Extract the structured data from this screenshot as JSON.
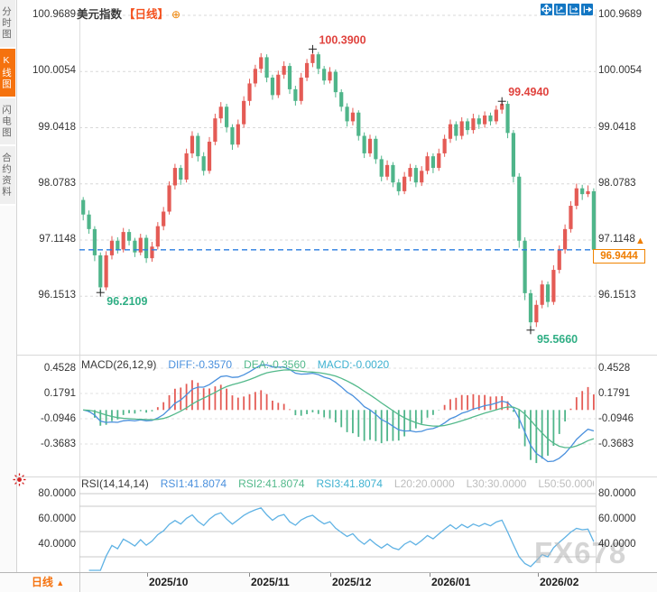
{
  "header": {
    "title": "美元指数",
    "period_tag": "【日线】",
    "plus_icon": "⊕"
  },
  "sidebar": {
    "tabs": [
      {
        "label": "分时图",
        "active": false
      },
      {
        "label": "K线图",
        "active": true
      },
      {
        "label": "闪电图",
        "active": false
      },
      {
        "label": "合约资料",
        "active": false
      }
    ]
  },
  "toolbar": {
    "icons": [
      "crosshair-move",
      "zoom-fit-horizontal",
      "zoom-fit-vertical",
      "jump-to-latest"
    ]
  },
  "colors": {
    "up_candle": "#e45b55",
    "down_candle": "#4fb58a",
    "accent_orange": "#f5720e",
    "period_tag_red": "#f4511e",
    "current_price_line": "#2a7de1",
    "annotation_high": "#e0433e",
    "annotation_low": "#2fae84",
    "diff_blue": "#4a90dd",
    "dea_green": "#53b98b",
    "macd_cyan": "#3eb1d0",
    "rsi_line": "#5fb2e4",
    "toolbar_blue": "#1276c3",
    "live_red": "#d42222",
    "grid": "#d8d8d8",
    "level_gray": "#bdbdbd"
  },
  "chart_data": [
    {
      "type": "candlestick",
      "title": "美元指数 日线 (US Dollar Index, daily)",
      "y_ticks": [
        "100.9689",
        "100.0054",
        "99.0418",
        "98.0783",
        "97.1148",
        "96.1513"
      ],
      "y_tick_values": [
        100.9689,
        100.0054,
        99.0418,
        98.0783,
        97.1148,
        96.1513
      ],
      "x_ticks": [
        "2025/10",
        "2025/11",
        "2025/12",
        "2026/01",
        "2026/02"
      ],
      "current_price": {
        "value": "96.9444",
        "numeric": 96.9444,
        "direction": "up",
        "arrow": "▲"
      },
      "annotations": [
        {
          "text": "100.3900",
          "kind": "high",
          "index": 40,
          "price": 100.39
        },
        {
          "text": "99.4940",
          "kind": "high",
          "index": 73,
          "price": 99.494
        },
        {
          "text": "96.2109",
          "kind": "low",
          "index": 3,
          "price": 96.2109
        },
        {
          "text": "95.5660",
          "kind": "low",
          "index": 78,
          "price": 95.566
        }
      ],
      "candles": [
        [
          97.8,
          97.85,
          97.45,
          97.55
        ],
        [
          97.55,
          97.62,
          97.22,
          97.3
        ],
        [
          97.3,
          97.35,
          96.75,
          96.85
        ],
        [
          96.85,
          96.9,
          96.2109,
          96.3
        ],
        [
          96.3,
          96.92,
          96.25,
          96.85
        ],
        [
          96.85,
          97.18,
          96.78,
          97.1
        ],
        [
          97.1,
          97.16,
          96.88,
          96.95
        ],
        [
          96.95,
          97.32,
          96.9,
          97.25
        ],
        [
          97.25,
          97.3,
          97.02,
          97.1
        ],
        [
          97.1,
          97.15,
          96.82,
          96.9
        ],
        [
          96.9,
          97.22,
          96.85,
          97.15
        ],
        [
          97.15,
          97.2,
          96.72,
          96.8
        ],
        [
          96.8,
          97.08,
          96.74,
          97.0
        ],
        [
          97.0,
          97.42,
          96.95,
          97.35
        ],
        [
          97.35,
          97.68,
          97.28,
          97.6
        ],
        [
          97.6,
          98.12,
          97.55,
          98.05
        ],
        [
          98.05,
          98.42,
          97.98,
          98.35
        ],
        [
          98.35,
          98.4,
          98.06,
          98.15
        ],
        [
          98.15,
          98.68,
          98.1,
          98.6
        ],
        [
          98.6,
          98.98,
          98.52,
          98.9
        ],
        [
          98.9,
          98.95,
          98.46,
          98.55
        ],
        [
          98.55,
          98.62,
          98.22,
          98.3
        ],
        [
          98.3,
          98.88,
          98.25,
          98.8
        ],
        [
          98.8,
          99.28,
          98.74,
          99.2
        ],
        [
          99.2,
          99.48,
          99.12,
          99.4
        ],
        [
          99.4,
          99.45,
          98.96,
          99.05
        ],
        [
          99.05,
          99.1,
          98.66,
          98.75
        ],
        [
          98.75,
          99.18,
          98.7,
          99.1
        ],
        [
          99.1,
          99.58,
          99.04,
          99.5
        ],
        [
          99.5,
          99.88,
          99.42,
          99.8
        ],
        [
          99.8,
          100.12,
          99.74,
          100.05
        ],
        [
          100.05,
          100.32,
          99.98,
          100.25
        ],
        [
          100.25,
          100.3,
          99.82,
          99.9
        ],
        [
          99.9,
          99.95,
          99.52,
          99.6
        ],
        [
          99.6,
          100.02,
          99.55,
          99.95
        ],
        [
          99.95,
          100.18,
          99.88,
          100.1
        ],
        [
          100.1,
          100.15,
          99.62,
          99.7
        ],
        [
          99.7,
          99.76,
          99.42,
          99.5
        ],
        [
          99.5,
          99.98,
          99.44,
          99.9
        ],
        [
          99.9,
          100.22,
          99.84,
          100.15
        ],
        [
          100.15,
          100.39,
          100.08,
          100.3
        ],
        [
          100.3,
          100.34,
          99.96,
          100.05
        ],
        [
          100.05,
          100.1,
          99.78,
          99.85
        ],
        [
          99.85,
          100.08,
          99.8,
          100.0
        ],
        [
          100.0,
          100.04,
          99.56,
          99.65
        ],
        [
          99.65,
          99.7,
          99.32,
          99.4
        ],
        [
          99.4,
          99.46,
          99.06,
          99.15
        ],
        [
          99.15,
          99.38,
          99.08,
          99.3
        ],
        [
          99.3,
          99.34,
          98.82,
          98.9
        ],
        [
          98.9,
          98.96,
          98.52,
          98.6
        ],
        [
          98.6,
          98.92,
          98.54,
          98.85
        ],
        [
          98.85,
          98.9,
          98.42,
          98.5
        ],
        [
          98.5,
          98.56,
          98.12,
          98.2
        ],
        [
          98.2,
          98.48,
          98.14,
          98.4
        ],
        [
          98.4,
          98.45,
          98.02,
          98.1
        ],
        [
          98.1,
          98.16,
          97.88,
          97.95
        ],
        [
          97.95,
          98.28,
          97.9,
          98.2
        ],
        [
          98.2,
          98.42,
          98.12,
          98.35
        ],
        [
          98.35,
          98.4,
          98.02,
          98.1
        ],
        [
          98.1,
          98.38,
          98.04,
          98.3
        ],
        [
          98.3,
          98.62,
          98.24,
          98.55
        ],
        [
          98.55,
          98.6,
          98.26,
          98.35
        ],
        [
          98.35,
          98.68,
          98.3,
          98.6
        ],
        [
          98.6,
          98.92,
          98.54,
          98.85
        ],
        [
          98.85,
          99.18,
          98.78,
          99.1
        ],
        [
          99.1,
          99.15,
          98.82,
          98.9
        ],
        [
          98.9,
          99.22,
          98.84,
          99.15
        ],
        [
          99.15,
          99.2,
          98.92,
          99.0
        ],
        [
          99.0,
          99.28,
          98.94,
          99.2
        ],
        [
          99.2,
          99.26,
          99.02,
          99.1
        ],
        [
          99.1,
          99.32,
          99.04,
          99.25
        ],
        [
          99.25,
          99.3,
          99.08,
          99.15
        ],
        [
          99.15,
          99.42,
          99.1,
          99.35
        ],
        [
          99.35,
          99.494,
          99.28,
          99.45
        ],
        [
          99.45,
          99.5,
          98.86,
          98.95
        ],
        [
          98.95,
          99.0,
          98.1,
          98.2
        ],
        [
          98.2,
          98.26,
          96.98,
          97.1
        ],
        [
          97.1,
          97.16,
          96.08,
          96.2
        ],
        [
          96.2,
          96.26,
          95.566,
          95.7
        ],
        [
          95.7,
          96.08,
          95.62,
          96.0
        ],
        [
          96.0,
          96.42,
          95.94,
          96.35
        ],
        [
          96.35,
          96.4,
          95.96,
          96.05
        ],
        [
          96.05,
          96.68,
          96.0,
          96.6
        ],
        [
          96.6,
          97.02,
          96.54,
          96.95
        ],
        [
          96.95,
          97.38,
          96.88,
          97.3
        ],
        [
          97.3,
          97.78,
          97.24,
          97.7
        ],
        [
          97.7,
          98.08,
          97.64,
          98.0
        ],
        [
          98.0,
          98.06,
          97.8,
          97.9
        ],
        [
          97.9,
          98.05,
          97.85,
          97.95
        ],
        [
          97.95,
          98.0,
          96.86,
          96.9444
        ]
      ]
    },
    {
      "type": "macd",
      "label": "MACD(26,12,9)",
      "params": {
        "slow": 26,
        "fast": 12,
        "signal": 9
      },
      "values_text": [
        {
          "label": "DIFF:-0.3570",
          "color": "#4a90dd"
        },
        {
          "label": "DEA:-0.3560",
          "color": "#53b98b"
        },
        {
          "label": "MACD:-0.0020",
          "color": "#3eb1d0"
        }
      ],
      "y_ticks": [
        "0.4528",
        "0.1791",
        "-0.0946",
        "-0.3683"
      ]
    },
    {
      "type": "rsi",
      "label": "RSI(14,14,14)",
      "period": 14,
      "values_text": [
        {
          "label": "RSI1:41.8074",
          "color": "#4a90dd"
        },
        {
          "label": "RSI2:41.8074",
          "color": "#53b98b"
        },
        {
          "label": "RSI3:41.8074",
          "color": "#3eb1d0"
        },
        {
          "label": "L20:20.0000",
          "color": "#bdbdbd"
        },
        {
          "label": "L30:30.0000",
          "color": "#bdbdbd"
        },
        {
          "label": "L50:50.0000",
          "color": "#bdbdbd"
        }
      ],
      "y_ticks": [
        "80.0000",
        "60.0000",
        "40.0000"
      ],
      "levels": [
        80,
        70,
        50,
        30
      ]
    }
  ],
  "bottom_bar": {
    "period_label": "日线",
    "arrow": "▲",
    "dates": [
      "2025/10",
      "2025/11",
      "2025/12",
      "2026/01",
      "2026/02"
    ]
  },
  "watermark": "FX678"
}
